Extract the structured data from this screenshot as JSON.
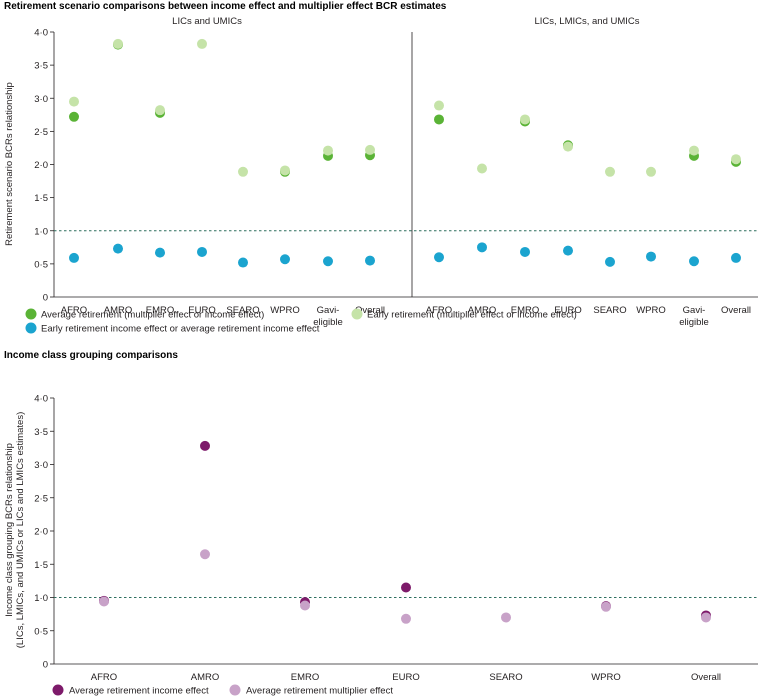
{
  "colors": {
    "avg_retirement": "#5ab336",
    "early_retirement": "#c5e3a8",
    "early_vs_avg_income": "#1ba4cf",
    "avg_income_effect": "#7d1a6a",
    "avg_multiplier_effect": "#c8a2c8",
    "reference_line": "#2e6f5e"
  },
  "chart_data": [
    {
      "type": "scatter",
      "title": "Retirement scenario comparisons between income effect and multiplier effect BCR estimates",
      "panel_title": "LICs and UMICs",
      "ylabel": "Retirement scenario BCRs relationship",
      "ylim": [
        0,
        4.0
      ],
      "yticks": [
        "0",
        "0·5",
        "1·0",
        "1·5",
        "2·0",
        "2·5",
        "3·0",
        "3·5",
        "4·0"
      ],
      "reference_line": 1.0,
      "categories": [
        "AFRO",
        "AMRO",
        "EMRO",
        "EURO",
        "SEARO",
        "WPRO",
        "Gavi-eligible",
        "Overall"
      ],
      "category_labels": [
        [
          "AFRO"
        ],
        [
          "AMRO"
        ],
        [
          "EMRO"
        ],
        [
          "EURO"
        ],
        [
          "SEARO"
        ],
        [
          "WPRO"
        ],
        [
          "Gavi-",
          "eligible"
        ],
        [
          "Overall"
        ]
      ],
      "series": [
        {
          "name": "Average retirement (multiplier effect or income effect)",
          "color_key": "avg_retirement",
          "values": [
            2.72,
            3.81,
            2.78,
            null,
            null,
            1.89,
            2.13,
            2.14
          ]
        },
        {
          "name": "Early retirement (multiplier effect or income effect)",
          "color_key": "early_retirement",
          "values": [
            2.95,
            3.82,
            2.82,
            3.82,
            1.89,
            1.91,
            2.21,
            2.22
          ]
        },
        {
          "name": "Early retirement income effect or average retirement income effect",
          "color_key": "early_vs_avg_income",
          "values": [
            0.59,
            0.73,
            0.67,
            0.68,
            0.52,
            0.57,
            0.54,
            0.55
          ]
        }
      ]
    },
    {
      "type": "scatter",
      "panel_title": "LICs, LMICs, and UMICs",
      "ylim": [
        0,
        4.0
      ],
      "reference_line": 1.0,
      "categories": [
        "AFRO",
        "AMRO",
        "EMRO",
        "EURO",
        "SEARO",
        "WPRO",
        "Gavi-eligible",
        "Overall"
      ],
      "category_labels": [
        [
          "AFRO"
        ],
        [
          "AMRO"
        ],
        [
          "EMRO"
        ],
        [
          "EURO"
        ],
        [
          "SEARO"
        ],
        [
          "WPRO"
        ],
        [
          "Gavi-",
          "eligible"
        ],
        [
          "Overall"
        ]
      ],
      "series": [
        {
          "name": "Average retirement (multiplier effect or income effect)",
          "color_key": "avg_retirement",
          "values": [
            2.68,
            null,
            2.65,
            2.29,
            null,
            null,
            2.13,
            2.04
          ]
        },
        {
          "name": "Early retirement (multiplier effect or income effect)",
          "color_key": "early_retirement",
          "values": [
            2.89,
            1.94,
            2.68,
            2.27,
            1.89,
            1.89,
            2.21,
            2.08
          ]
        },
        {
          "name": "Early retirement income effect or average retirement income effect",
          "color_key": "early_vs_avg_income",
          "values": [
            0.6,
            0.75,
            0.68,
            0.7,
            0.53,
            0.61,
            0.54,
            0.59
          ]
        }
      ]
    },
    {
      "type": "scatter",
      "title": "Income class grouping comparisons",
      "ylabel_lines": [
        "Income class grouping BCRs relationship",
        "(LICs, LMICs, and UMICs or LICs and LMICs estimates)"
      ],
      "ylim": [
        0,
        4.0
      ],
      "yticks": [
        "0",
        "0·5",
        "1·0",
        "1·5",
        "2·0",
        "2·5",
        "3·0",
        "3·5",
        "4·0"
      ],
      "reference_line": 1.0,
      "categories": [
        "AFRO",
        "AMRO",
        "EMRO",
        "EURO",
        "SEARO",
        "WPRO",
        "Overall"
      ],
      "category_labels": [
        [
          "AFRO"
        ],
        [
          "AMRO"
        ],
        [
          "EMRO"
        ],
        [
          "EURO"
        ],
        [
          "SEARO"
        ],
        [
          "WPRO"
        ],
        [
          "Overall"
        ]
      ],
      "series": [
        {
          "name": "Average retirement income effect",
          "color_key": "avg_income_effect",
          "values": [
            0.95,
            3.28,
            0.93,
            1.15,
            null,
            0.87,
            0.73
          ]
        },
        {
          "name": "Average retirement multiplier effect",
          "color_key": "avg_multiplier_effect",
          "values": [
            0.94,
            1.65,
            0.88,
            0.68,
            0.7,
            0.86,
            0.7
          ]
        }
      ]
    }
  ],
  "legends": {
    "top": [
      {
        "label": "Average retirement (multiplier effect or income effect)",
        "color_key": "avg_retirement"
      },
      {
        "label": "Early retirement (multiplier effect or income effect)",
        "color_key": "early_retirement"
      },
      {
        "label": "Early retirement income effect or average retirement income effect",
        "color_key": "early_vs_avg_income"
      }
    ],
    "bottom": [
      {
        "label": "Average retirement income effect",
        "color_key": "avg_income_effect"
      },
      {
        "label": "Average retirement multiplier effect",
        "color_key": "avg_multiplier_effect"
      }
    ]
  }
}
